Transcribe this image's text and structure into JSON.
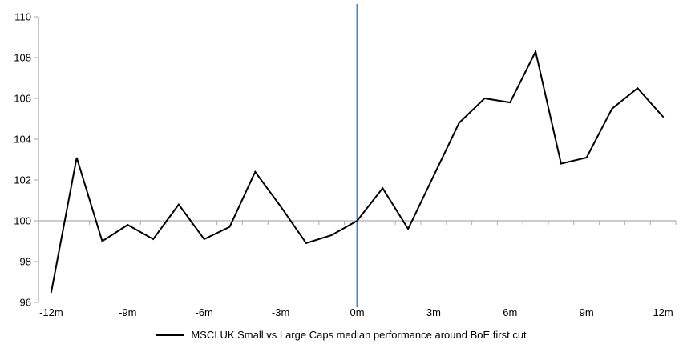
{
  "chart_data": {
    "type": "line",
    "title": "",
    "legend": "MSCI UK Small vs Large Caps median performance around BoE first cut",
    "xlabel": "",
    "ylabel": "",
    "x_unit_suffix": "m",
    "x": [
      -12,
      -11,
      -10,
      -9,
      -8,
      -7,
      -6,
      -5,
      -4,
      -3,
      -2,
      -1,
      0,
      1,
      2,
      3,
      4,
      5,
      6,
      7,
      8,
      9,
      10,
      11,
      12
    ],
    "series": [
      {
        "name": "MSCI UK Small vs Large Caps median performance around BoE first cut",
        "values": [
          96.5,
          103.1,
          99.0,
          99.8,
          99.1,
          100.8,
          99.1,
          99.7,
          102.4,
          100.7,
          98.9,
          99.3,
          100.0,
          101.6,
          99.6,
          102.2,
          104.8,
          106.0,
          105.8,
          108.3,
          102.8,
          103.1,
          105.5,
          106.5,
          105.1
        ]
      }
    ],
    "ylim": [
      96,
      110
    ],
    "y_ticks": [
      96,
      98,
      100,
      102,
      104,
      106,
      108,
      110
    ],
    "x_tick_labels": [
      "-12m",
      "-9m",
      "-6m",
      "-3m",
      "0m",
      "3m",
      "6m",
      "9m",
      "12m"
    ],
    "x_tick_months": [
      -12,
      -9,
      -6,
      -3,
      0,
      3,
      6,
      9,
      12
    ],
    "baseline_value": 100,
    "event_line_month": 0,
    "grid": "off",
    "legend_position": "bottom-center",
    "colors": {
      "series": "#000000",
      "event_line": "#4F81BD",
      "axis": "#A6A6A6",
      "baseline": "#ADADAD",
      "text": "#000000"
    }
  }
}
